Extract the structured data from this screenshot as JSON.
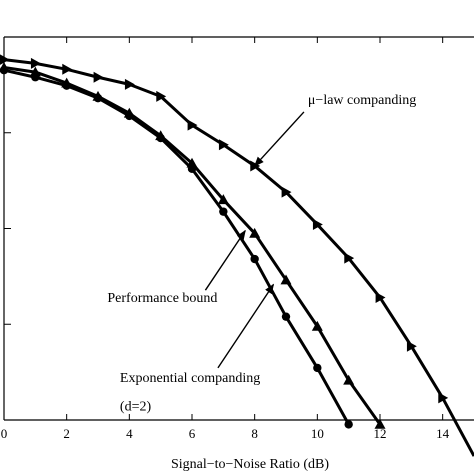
{
  "chart_data": {
    "type": "line",
    "xlabel": "Signal−to−Noise Ratio (dB)",
    "ylabel": "",
    "title": "",
    "xlim": [
      0,
      15
    ],
    "y_scale": "log",
    "ylim": [
      0.0001,
      1
    ],
    "x_ticks": [
      0,
      2,
      4,
      6,
      8,
      10,
      12,
      14
    ],
    "x_tick_labels": [
      "0",
      "2",
      "4",
      "6",
      "8",
      "10",
      "12",
      "14"
    ],
    "y_major_ticks": [
      0.001,
      0.01,
      0.1
    ],
    "grid": false,
    "series": [
      {
        "marker": "triangle-right",
        "color": "#000000",
        "x": [
          0,
          1,
          2,
          3,
          4,
          5,
          6,
          7,
          8,
          9,
          10,
          11,
          12,
          13,
          14,
          15
        ],
        "y": [
          0.58,
          0.53,
          0.46,
          0.38,
          0.32,
          0.24,
          0.12,
          0.075,
          0.045,
          0.024,
          0.011,
          0.0049,
          0.0019,
          0.00059,
          0.00017,
          4.2e-05
        ]
      },
      {
        "marker": "triangle-up",
        "color": "#000000",
        "x": [
          0,
          1,
          2,
          3,
          4,
          5,
          6,
          7,
          8,
          9,
          10,
          11,
          12
        ],
        "y": [
          0.48,
          0.43,
          0.33,
          0.24,
          0.16,
          0.093,
          0.048,
          0.02,
          0.0089,
          0.0029,
          0.00095,
          0.00026,
          9e-05
        ]
      },
      {
        "marker": "circle",
        "color": "#000000",
        "x": [
          0,
          1,
          2,
          3,
          4,
          5,
          6,
          7,
          8,
          9,
          10,
          11
        ],
        "y": [
          0.45,
          0.38,
          0.31,
          0.23,
          0.15,
          0.088,
          0.042,
          0.015,
          0.0048,
          0.0012,
          0.00035,
          9e-05
        ]
      }
    ],
    "annotations": [
      {
        "id": "mulaw",
        "text": "μ−law companding",
        "x": 8,
        "y": 0.045,
        "text_x": 9.7,
        "text_y": 0.2
      },
      {
        "id": "bound",
        "text": "Performance bound",
        "x": 7.7,
        "y": 0.0095,
        "text_x": 3.3,
        "text_y": 0.0017
      },
      {
        "id": "exp1",
        "text": "Exponential companding",
        "x": 8.6,
        "y": 0.0026,
        "text_x": 3.7,
        "text_y": 0.00025
      },
      {
        "id": "exp2",
        "text": "(d=2)",
        "x": null,
        "y": null,
        "text_x": 3.7,
        "text_y": 0.000125
      }
    ]
  }
}
